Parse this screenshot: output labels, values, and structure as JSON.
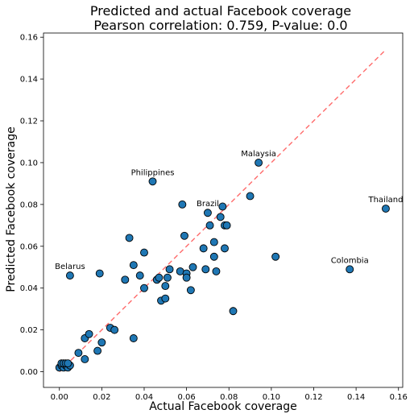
{
  "chart_data": {
    "type": "scatter",
    "title": "Predicted and actual Facebook coverage",
    "subtitle": "Pearson correlation: 0.759, P-value: 0.0",
    "xlabel": "Actual Facebook coverage",
    "ylabel": "Predicted Facebook coverage",
    "xlim": [
      -0.0075,
      0.162
    ],
    "ylim": [
      -0.0075,
      0.162
    ],
    "xticks": [
      "0.00",
      "0.02",
      "0.04",
      "0.06",
      "0.08",
      "0.10",
      "0.12",
      "0.14",
      "0.16"
    ],
    "yticks": [
      "0.00",
      "0.02",
      "0.04",
      "0.06",
      "0.08",
      "0.10",
      "0.12",
      "0.14",
      "0.16"
    ],
    "grid": false,
    "point_color": "#1f77b4",
    "point_edge_color": "#000000",
    "reference_line": {
      "style": "dashed",
      "color": "#ff6b6b",
      "from": [
        0.0,
        0.0
      ],
      "to": [
        0.154,
        0.154
      ]
    },
    "points": [
      [
        0.0,
        0.002
      ],
      [
        0.001,
        0.003
      ],
      [
        0.002,
        0.002
      ],
      [
        0.003,
        0.003
      ],
      [
        0.004,
        0.002
      ],
      [
        0.005,
        0.003
      ],
      [
        0.001,
        0.004
      ],
      [
        0.002,
        0.004
      ],
      [
        0.003,
        0.004
      ],
      [
        0.004,
        0.004
      ],
      [
        0.009,
        0.009
      ],
      [
        0.012,
        0.016
      ],
      [
        0.014,
        0.018
      ],
      [
        0.012,
        0.006
      ],
      [
        0.018,
        0.01
      ],
      [
        0.02,
        0.014
      ],
      [
        0.024,
        0.021
      ],
      [
        0.026,
        0.02
      ],
      [
        0.035,
        0.016
      ],
      [
        0.019,
        0.047
      ],
      [
        0.031,
        0.044
      ],
      [
        0.035,
        0.051
      ],
      [
        0.038,
        0.046
      ],
      [
        0.04,
        0.04
      ],
      [
        0.04,
        0.057
      ],
      [
        0.033,
        0.064
      ],
      [
        0.046,
        0.044
      ],
      [
        0.047,
        0.045
      ],
      [
        0.048,
        0.034
      ],
      [
        0.05,
        0.035
      ],
      [
        0.05,
        0.041
      ],
      [
        0.051,
        0.045
      ],
      [
        0.052,
        0.049
      ],
      [
        0.057,
        0.048
      ],
      [
        0.06,
        0.047
      ],
      [
        0.06,
        0.045
      ],
      [
        0.059,
        0.065
      ],
      [
        0.062,
        0.039
      ],
      [
        0.063,
        0.05
      ],
      [
        0.068,
        0.059
      ],
      [
        0.069,
        0.049
      ],
      [
        0.071,
        0.07
      ],
      [
        0.073,
        0.055
      ],
      [
        0.073,
        0.062
      ],
      [
        0.074,
        0.048
      ],
      [
        0.076,
        0.074
      ],
      [
        0.078,
        0.059
      ],
      [
        0.078,
        0.07
      ],
      [
        0.079,
        0.07
      ],
      [
        0.082,
        0.029
      ],
      [
        0.09,
        0.084
      ],
      [
        0.102,
        0.055
      ],
      [
        0.058,
        0.08
      ],
      [
        0.077,
        0.079
      ],
      [
        0.07,
        0.076
      ],
      [
        0.005,
        0.046
      ],
      [
        0.044,
        0.091
      ],
      [
        0.094,
        0.1
      ],
      [
        0.137,
        0.049
      ],
      [
        0.154,
        0.078
      ]
    ],
    "annotations": [
      {
        "text": "Belarus",
        "x": 0.005,
        "y": 0.046
      },
      {
        "text": "Philippines",
        "x": 0.044,
        "y": 0.091
      },
      {
        "text": "Brazil",
        "x": 0.07,
        "y": 0.076
      },
      {
        "text": "Malaysia",
        "x": 0.094,
        "y": 0.1
      },
      {
        "text": "Colombia",
        "x": 0.137,
        "y": 0.049
      },
      {
        "text": "Thailand",
        "x": 0.154,
        "y": 0.078
      }
    ]
  }
}
